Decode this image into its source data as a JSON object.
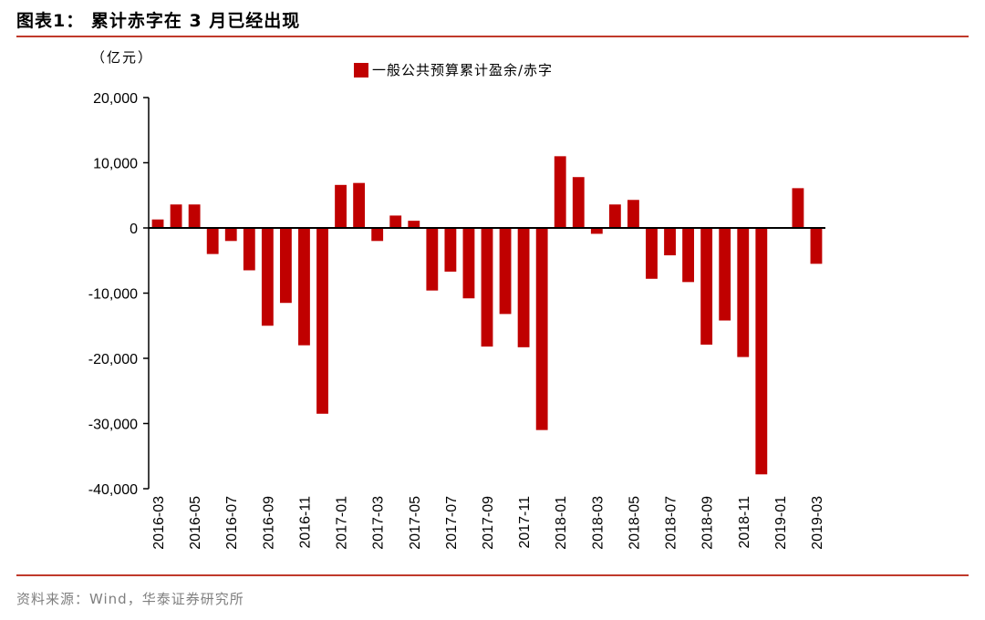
{
  "header": {
    "title": "图表1：  累计赤字在 3 月已经出现"
  },
  "footer": {
    "source": "资料来源：Wind，华泰证券研究所"
  },
  "colors": {
    "bar": "#c00000",
    "rule": "#c0392b"
  },
  "chart_data": {
    "type": "bar",
    "unit_label": "（亿元）",
    "ylim": [
      -40000,
      20000
    ],
    "yticks": [
      20000,
      10000,
      0,
      -10000,
      -20000,
      -30000,
      -40000
    ],
    "ytick_labels": [
      "20,000",
      "10,000",
      "0",
      "-10,000",
      "-20,000",
      "-30,000",
      "-40,000"
    ],
    "categories": [
      "2016-03",
      "2016-04",
      "2016-05",
      "2016-06",
      "2016-07",
      "2016-08",
      "2016-09",
      "2016-10",
      "2016-11",
      "2016-12",
      "2017-01",
      "2017-02",
      "2017-03",
      "2017-04",
      "2017-05",
      "2017-06",
      "2017-07",
      "2017-08",
      "2017-09",
      "2017-10",
      "2017-11",
      "2017-12",
      "2018-01",
      "2018-02",
      "2018-03",
      "2018-04",
      "2018-05",
      "2018-06",
      "2018-07",
      "2018-08",
      "2018-09",
      "2018-10",
      "2018-11",
      "2018-12",
      "2019-01",
      "2019-02",
      "2019-03"
    ],
    "xtick_labels": [
      "2016-03",
      "2016-05",
      "2016-07",
      "2016-09",
      "2016-11",
      "2017-01",
      "2017-03",
      "2017-05",
      "2017-07",
      "2017-09",
      "2017-11",
      "2018-01",
      "2018-03",
      "2018-05",
      "2018-07",
      "2018-09",
      "2018-11",
      "2019-01",
      "2019-03"
    ],
    "series": [
      {
        "name": "一般公共预算累计盈余/赤字",
        "values": [
          1300,
          3600,
          3600,
          -4000,
          -2000,
          -6500,
          -15000,
          -11500,
          -18000,
          -28500,
          6600,
          6900,
          -2000,
          1900,
          1100,
          -9600,
          -6700,
          -10800,
          -18200,
          -13200,
          -18300,
          -31000,
          11000,
          7800,
          -900,
          3600,
          4300,
          -7800,
          -4200,
          -8300,
          -17900,
          -14200,
          -19800,
          -37800,
          null,
          6100,
          -5500
        ]
      }
    ],
    "title": "",
    "xlabel": "",
    "ylabel": "亿元",
    "grid": false,
    "legend": "top-center"
  }
}
